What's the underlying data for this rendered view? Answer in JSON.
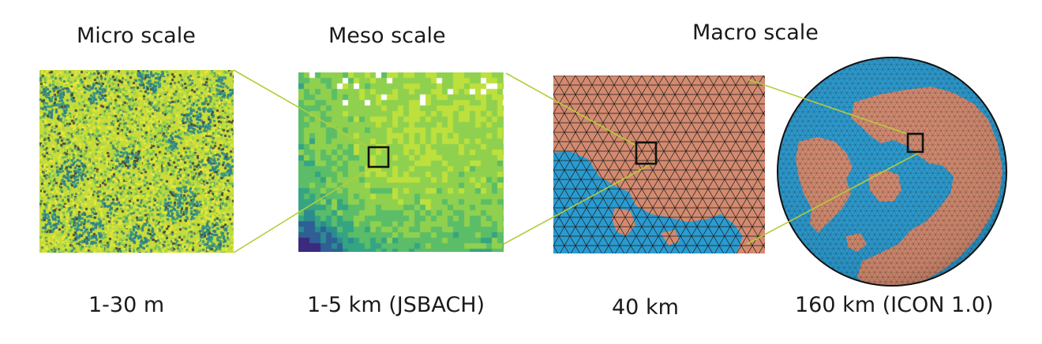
{
  "scales": [
    {
      "title": "Micro scale",
      "resolution": "1-30  m"
    },
    {
      "title": "Meso scale",
      "resolution": "1-5  km (JSBACH)"
    },
    {
      "title": "Macro scale",
      "resolution": "40 km"
    },
    {
      "title": "",
      "resolution": "160 km (ICON 1.0)"
    }
  ],
  "colors": {
    "land": "#d48a6f",
    "ocean": "#2a9bd1",
    "mesh_line": "#1c1c1c",
    "connector": "#b5cc3a",
    "marker_box": "#111111"
  }
}
